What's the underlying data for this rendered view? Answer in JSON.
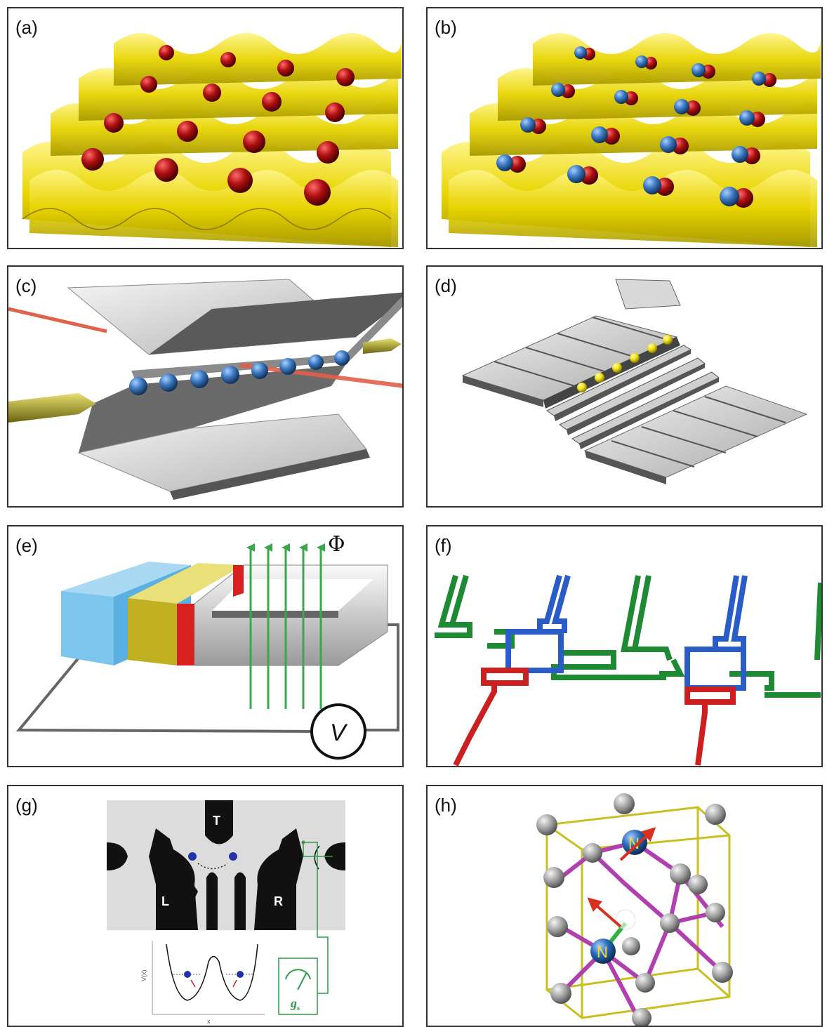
{
  "panels": {
    "a": {
      "label": "(a)"
    },
    "b": {
      "label": "(b)"
    },
    "c": {
      "label": "(c)"
    },
    "d": {
      "label": "(d)"
    },
    "e": {
      "label": "(e)",
      "flux_symbol": "Φ",
      "voltmeter_symbol": "V"
    },
    "f": {
      "label": "(f)"
    },
    "g": {
      "label": "(g)",
      "gate_top": "T",
      "gate_left": "L",
      "gate_right": "R",
      "axis_y": "V(x)",
      "axis_x": "x",
      "meter_symbol": "g",
      "meter_subscript": "s"
    },
    "h": {
      "label": "(h)",
      "atom_label": "N"
    }
  },
  "colors": {
    "lattice": "#e8d400",
    "particle_red": "#b01010",
    "particle_blue": "#3b78c0",
    "electrode": "#d0d0d0",
    "yellow_ion": "#f2e21a",
    "flux_green": "#3aa84a",
    "superconductor_blue": "#2a5cc8",
    "circuit_green": "#1f8a34",
    "circuit_red": "#cc1f1f",
    "bond_magenta": "#b040b0",
    "cell_yellow": "#c8c020",
    "meter_green": "#2e9a4a"
  }
}
